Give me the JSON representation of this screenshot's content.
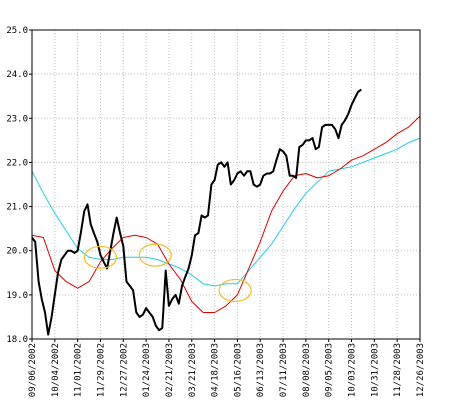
{
  "chart_data": {
    "type": "line",
    "title": "",
    "xlabel": "",
    "ylabel": "",
    "ylim": [
      18.0,
      25.0
    ],
    "y_ticks": [
      "18.0",
      "19.0",
      "20.0",
      "21.0",
      "22.0",
      "23.0",
      "24.0",
      "25.0"
    ],
    "x_ticks": [
      "09/06/2002",
      "10/04/2002",
      "11/01/2002",
      "11/29/2002",
      "12/27/2002",
      "01/24/2003",
      "02/21/2003",
      "03/21/2003",
      "04/18/2003",
      "05/16/2003",
      "06/13/2003",
      "07/11/2003",
      "08/08/2003",
      "09/05/2003",
      "10/03/2003",
      "10/31/2003",
      "11/28/2003",
      "12/26/2003"
    ],
    "grid": "dotted",
    "colors": {
      "price": "#000000",
      "short_ma": "#e00000",
      "long_ma": "#20d0e0",
      "highlight": "#f0c020",
      "grid": "#c0c0c0"
    },
    "series": [
      {
        "key": "price",
        "x_tick_index": [
          0,
          0.14,
          0.29,
          0.43,
          0.57,
          0.71,
          0.86,
          1,
          1.14,
          1.29,
          1.43,
          1.57,
          1.71,
          1.86,
          2,
          2.14,
          2.29,
          2.43,
          2.57,
          2.71,
          2.86,
          3,
          3.14,
          3.29,
          3.43,
          3.57,
          3.71,
          3.86,
          4,
          4.14,
          4.29,
          4.43,
          4.57,
          4.71,
          4.86,
          5,
          5.14,
          5.29,
          5.43,
          5.57,
          5.71,
          5.86,
          6,
          6.14,
          6.29,
          6.43,
          6.57,
          6.71,
          6.86,
          7,
          7.14,
          7.29,
          7.43,
          7.57,
          7.71,
          7.86,
          8,
          8.14,
          8.29,
          8.43,
          8.57,
          8.71,
          8.86,
          9,
          9.14,
          9.29,
          9.43,
          9.57,
          9.71,
          9.86,
          10,
          10.14,
          10.29,
          10.43,
          10.57,
          10.71,
          10.86,
          11,
          11.14,
          11.29,
          11.43,
          11.57,
          11.71,
          11.86,
          12,
          12.14,
          12.29,
          12.43,
          12.57,
          12.71,
          12.86,
          13,
          13.14,
          13.29,
          13.43,
          13.57,
          13.71,
          13.86,
          14,
          14.14,
          14.29,
          14.43,
          14.57,
          14.71,
          14.86,
          15,
          15.14,
          15.29,
          15.43,
          15.57,
          15.71,
          15.86,
          16,
          16.14,
          16.29,
          16.43,
          16.57,
          16.71,
          16.86,
          17
        ],
        "values": [
          20.3,
          20.2,
          19.3,
          18.9,
          18.6,
          18.1,
          18.5,
          19.0,
          19.5,
          19.8,
          19.9,
          20.0,
          20.0,
          19.95,
          20.0,
          20.4,
          20.9,
          21.05,
          20.6,
          20.4,
          20.2,
          19.9,
          19.75,
          19.6,
          20.0,
          20.4,
          20.75,
          20.4,
          20.1,
          19.3,
          19.2,
          19.1,
          18.6,
          18.5,
          18.55,
          18.7,
          18.6,
          18.5,
          18.3,
          18.2,
          18.25,
          19.55,
          18.75,
          18.9,
          19.0,
          18.8,
          19.2,
          19.4,
          19.6,
          19.9,
          20.35,
          20.4,
          20.8,
          20.75,
          20.8,
          21.5,
          21.6,
          21.95,
          22.0,
          21.9,
          22.0,
          21.5,
          21.6,
          21.75,
          21.8,
          21.7,
          21.8,
          21.8,
          21.5,
          21.45,
          21.5,
          21.7,
          21.75,
          21.75,
          21.8,
          22.05,
          22.3,
          22.25,
          22.15,
          21.7,
          21.7,
          21.65,
          22.35,
          22.4,
          22.5,
          22.5,
          22.55,
          22.3,
          22.35,
          22.8,
          22.85,
          22.85,
          22.85,
          22.75,
          22.55,
          22.85,
          22.95,
          23.1,
          23.3,
          23.45,
          23.6,
          23.65
        ]
      },
      {
        "key": "short_ma",
        "x_tick_index": [
          0,
          0.5,
          1,
          1.5,
          2,
          2.5,
          3,
          3.5,
          4,
          4.5,
          5,
          5.5,
          6,
          6.5,
          7,
          7.5,
          8,
          8.5,
          9,
          9.5,
          10,
          10.5,
          11,
          11.5,
          12,
          12.5,
          13,
          13.5,
          14,
          14.5,
          15,
          15.5,
          16,
          16.5,
          17
        ],
        "values": [
          20.35,
          20.3,
          19.55,
          19.3,
          19.15,
          19.3,
          19.75,
          20.05,
          20.3,
          20.35,
          20.3,
          20.15,
          19.7,
          19.35,
          18.85,
          18.6,
          18.6,
          18.75,
          19.0,
          19.6,
          20.2,
          20.9,
          21.35,
          21.7,
          21.75,
          21.65,
          21.7,
          21.85,
          22.05,
          22.15,
          22.3,
          22.45,
          22.65,
          22.8,
          23.05
        ]
      },
      {
        "key": "long_ma",
        "x_tick_index": [
          0,
          0.5,
          1,
          1.5,
          2,
          2.5,
          3,
          3.5,
          4,
          4.5,
          5,
          5.5,
          6,
          6.5,
          7,
          7.5,
          8,
          8.5,
          9,
          9.5,
          10,
          10.5,
          11,
          11.5,
          12,
          12.5,
          13,
          13.5,
          14,
          14.5,
          15,
          15.5,
          16,
          16.5,
          17
        ],
        "values": [
          21.8,
          21.3,
          20.85,
          20.45,
          20.05,
          19.85,
          19.8,
          19.8,
          19.85,
          19.85,
          19.85,
          19.8,
          19.7,
          19.6,
          19.45,
          19.25,
          19.2,
          19.25,
          19.25,
          19.55,
          19.85,
          20.15,
          20.55,
          20.95,
          21.3,
          21.55,
          21.8,
          21.85,
          21.9,
          22.0,
          22.1,
          22.2,
          22.3,
          22.45,
          22.55
        ]
      }
    ],
    "highlight_circles": [
      {
        "x_tick_index": 3.0,
        "y": 19.85
      },
      {
        "x_tick_index": 5.4,
        "y": 19.9
      },
      {
        "x_tick_index": 8.9,
        "y": 19.1
      }
    ]
  }
}
